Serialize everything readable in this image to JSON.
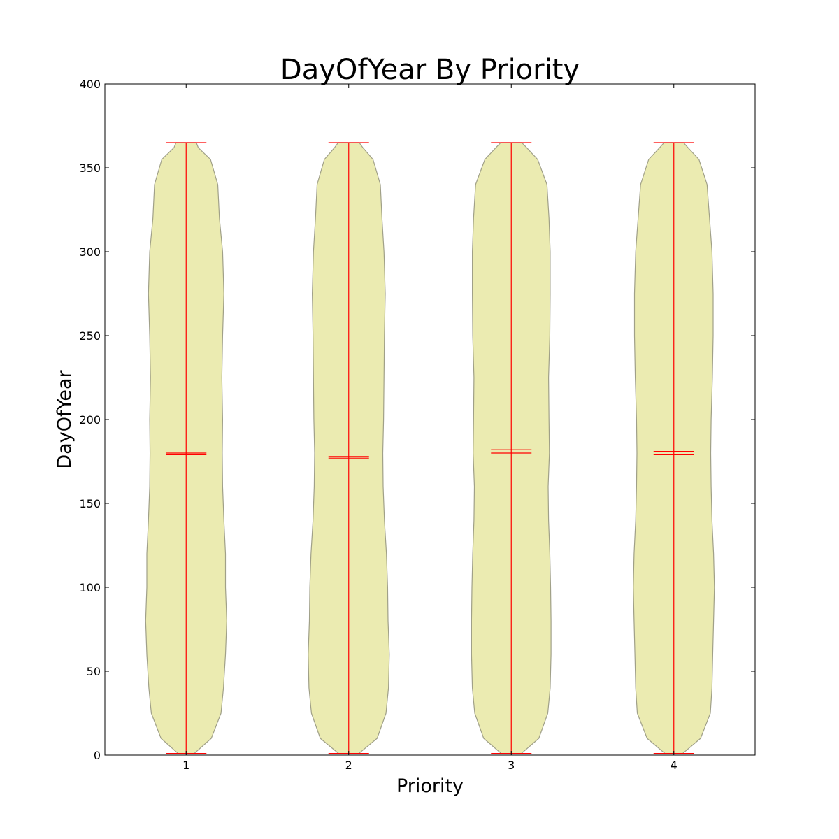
{
  "chart_data": {
    "type": "violin",
    "title": "DayOfYear By Priority",
    "xlabel": "Priority",
    "ylabel": "DayOfYear",
    "categories": [
      "1",
      "2",
      "3",
      "4"
    ],
    "xlim": [
      0.5,
      4.5
    ],
    "ylim": [
      0,
      400
    ],
    "yticks": [
      0,
      50,
      100,
      150,
      200,
      250,
      300,
      350,
      400
    ],
    "grid": false,
    "colors": {
      "body_fill": "#ebebb1",
      "body_edge": "#a0a088",
      "lines": "#ff0000",
      "axes": "#000000"
    },
    "violins": [
      {
        "category": "1",
        "min": 1,
        "max": 365,
        "mean": 180,
        "median": 179,
        "density": [
          [
            1,
            0.2
          ],
          [
            10,
            0.62
          ],
          [
            25,
            0.86
          ],
          [
            40,
            0.92
          ],
          [
            60,
            0.97
          ],
          [
            80,
            1.0
          ],
          [
            100,
            0.97
          ],
          [
            120,
            0.97
          ],
          [
            140,
            0.93
          ],
          [
            160,
            0.9
          ],
          [
            180,
            0.89
          ],
          [
            200,
            0.9
          ],
          [
            225,
            0.88
          ],
          [
            250,
            0.9
          ],
          [
            275,
            0.93
          ],
          [
            300,
            0.9
          ],
          [
            320,
            0.82
          ],
          [
            340,
            0.78
          ],
          [
            355,
            0.6
          ],
          [
            362,
            0.3
          ],
          [
            365,
            0.25
          ]
        ]
      },
      {
        "category": "2",
        "min": 1,
        "max": 365,
        "mean": 178,
        "median": 177,
        "density": [
          [
            1,
            0.25
          ],
          [
            10,
            0.7
          ],
          [
            25,
            0.92
          ],
          [
            40,
            0.98
          ],
          [
            60,
            1.0
          ],
          [
            80,
            0.97
          ],
          [
            100,
            0.96
          ],
          [
            120,
            0.93
          ],
          [
            140,
            0.88
          ],
          [
            160,
            0.85
          ],
          [
            180,
            0.84
          ],
          [
            200,
            0.86
          ],
          [
            225,
            0.87
          ],
          [
            250,
            0.88
          ],
          [
            275,
            0.9
          ],
          [
            300,
            0.87
          ],
          [
            320,
            0.82
          ],
          [
            340,
            0.78
          ],
          [
            355,
            0.6
          ],
          [
            362,
            0.35
          ],
          [
            365,
            0.26
          ]
        ]
      },
      {
        "category": "3",
        "min": 1,
        "max": 365,
        "mean": 182,
        "median": 180,
        "density": [
          [
            1,
            0.25
          ],
          [
            10,
            0.68
          ],
          [
            25,
            0.9
          ],
          [
            40,
            0.96
          ],
          [
            60,
            0.98
          ],
          [
            80,
            0.98
          ],
          [
            100,
            0.97
          ],
          [
            120,
            0.95
          ],
          [
            140,
            0.92
          ],
          [
            160,
            0.91
          ],
          [
            180,
            0.94
          ],
          [
            200,
            0.93
          ],
          [
            225,
            0.92
          ],
          [
            250,
            0.95
          ],
          [
            275,
            0.96
          ],
          [
            300,
            0.96
          ],
          [
            320,
            0.93
          ],
          [
            340,
            0.88
          ],
          [
            355,
            0.65
          ],
          [
            362,
            0.38
          ],
          [
            365,
            0.26
          ]
        ]
      },
      {
        "category": "4",
        "min": 1,
        "max": 365,
        "mean": 181,
        "median": 179,
        "density": [
          [
            1,
            0.22
          ],
          [
            10,
            0.66
          ],
          [
            25,
            0.9
          ],
          [
            40,
            0.94
          ],
          [
            60,
            0.96
          ],
          [
            80,
            0.98
          ],
          [
            100,
            1.0
          ],
          [
            120,
            0.98
          ],
          [
            140,
            0.94
          ],
          [
            160,
            0.92
          ],
          [
            180,
            0.91
          ],
          [
            200,
            0.92
          ],
          [
            225,
            0.95
          ],
          [
            250,
            0.97
          ],
          [
            275,
            0.97
          ],
          [
            300,
            0.94
          ],
          [
            320,
            0.88
          ],
          [
            340,
            0.82
          ],
          [
            355,
            0.62
          ],
          [
            362,
            0.35
          ],
          [
            365,
            0.24
          ]
        ]
      }
    ]
  }
}
